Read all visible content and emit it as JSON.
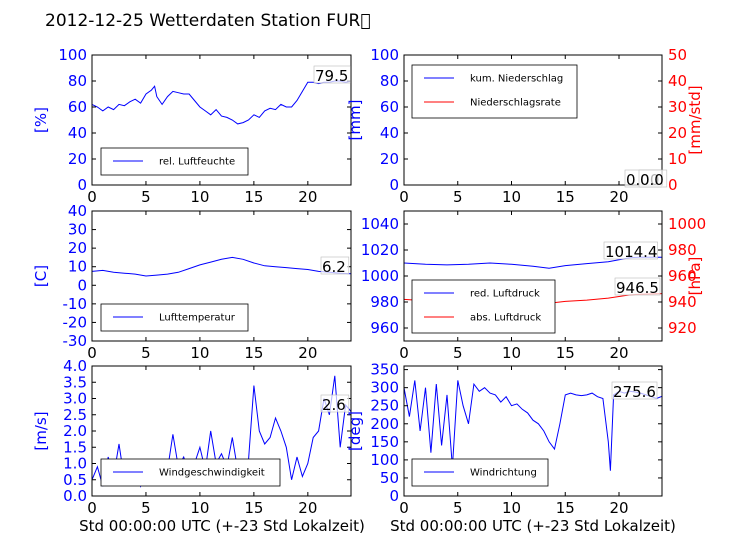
{
  "title": "2012-12-25 Wetterdaten Station FUR\u0000",
  "xlabel": "Std 00:00:00 UTC (+-23 Std Lokalzeit)",
  "colors": {
    "blue": "#0000ff",
    "red": "#ff0000",
    "black": "#000000"
  },
  "chart_data": [
    {
      "id": "humidity",
      "type": "line",
      "xlim": [
        0,
        24
      ],
      "ylim": [
        0,
        100
      ],
      "xticks": [
        0,
        5,
        10,
        15,
        20
      ],
      "yticks": [
        0,
        20,
        40,
        60,
        80,
        100
      ],
      "ylabel": "[%]",
      "legend": [
        "rel. Luftfeuchte"
      ],
      "legend_position": "lower-left",
      "annotation": "79.5",
      "series": [
        {
          "name": "rel. Luftfeuchte",
          "color": "#0000ff",
          "x": [
            0,
            0.5,
            1,
            1.5,
            2,
            2.5,
            3,
            3.5,
            4,
            4.5,
            5,
            5.5,
            5.8,
            6,
            6.5,
            7,
            7.5,
            8,
            8.5,
            9,
            9.5,
            10,
            10.5,
            11,
            11.5,
            12,
            12.5,
            13,
            13.5,
            14,
            14.5,
            15,
            15.5,
            16,
            16.5,
            17,
            17.5,
            18,
            18.5,
            19,
            19.5,
            20,
            20.5,
            21,
            21.5,
            22,
            22.5,
            23,
            23.5,
            24
          ],
          "y": [
            62,
            60,
            57,
            60,
            58,
            62,
            61,
            64,
            66,
            63,
            70,
            73,
            76,
            68,
            62,
            68,
            72,
            71,
            70,
            70,
            65,
            60,
            57,
            54,
            58,
            53,
            52,
            50,
            47,
            48,
            50,
            54,
            52,
            57,
            59,
            58,
            62,
            60,
            60,
            65,
            72,
            79,
            79,
            78,
            79,
            79,
            80,
            80,
            79,
            80
          ]
        }
      ]
    },
    {
      "id": "precipitation",
      "type": "line",
      "xlim": [
        0,
        24
      ],
      "ylim": [
        0,
        100
      ],
      "y2lim": [
        0,
        50
      ],
      "xticks": [
        0,
        5,
        10,
        15,
        20
      ],
      "yticks": [
        0,
        20,
        40,
        60,
        80,
        100
      ],
      "y2ticks": [
        0,
        10,
        20,
        30,
        40,
        50
      ],
      "ylabel": "[mm]",
      "y2label": "[mm/std]",
      "legend": [
        "kum. Niederschlag",
        "Niederschlagsrate"
      ],
      "legend_position": "upper-left",
      "annotation": "0.00",
      "annotation2": "0.0",
      "series": [
        {
          "name": "kum. Niederschlag",
          "color": "#0000ff",
          "axis": "left",
          "x": [
            0,
            24
          ],
          "y": [
            0,
            0
          ]
        },
        {
          "name": "Niederschlagsrate",
          "color": "#ff0000",
          "axis": "right",
          "x": [
            0,
            24
          ],
          "y": [
            0,
            0
          ]
        }
      ]
    },
    {
      "id": "temperature",
      "type": "line",
      "xlim": [
        0,
        24
      ],
      "ylim": [
        -30,
        40
      ],
      "xticks": [
        0,
        5,
        10,
        15,
        20
      ],
      "yticks": [
        -30,
        -20,
        -10,
        0,
        10,
        20,
        30,
        40
      ],
      "ylabel": "[C]",
      "legend": [
        "Lufttemperatur"
      ],
      "legend_position": "lower-left",
      "annotation": "6.2",
      "series": [
        {
          "name": "Lufttemperatur",
          "color": "#0000ff",
          "x": [
            0,
            1,
            2,
            3,
            4,
            5,
            6,
            7,
            8,
            9,
            10,
            11,
            12,
            13,
            14,
            15,
            16,
            17,
            18,
            19,
            20,
            21,
            22,
            23,
            24
          ],
          "y": [
            7.5,
            8,
            7,
            6.5,
            6,
            5,
            5.5,
            6,
            7,
            9,
            11,
            12.5,
            14,
            15,
            14,
            12,
            10.5,
            10,
            9.5,
            9,
            8.5,
            7.5,
            7,
            6.5,
            6.2
          ]
        }
      ]
    },
    {
      "id": "pressure",
      "type": "line",
      "xlim": [
        0,
        24
      ],
      "ylim": [
        950,
        1050
      ],
      "y2lim": [
        910,
        1010
      ],
      "xticks": [
        0,
        5,
        10,
        15,
        20
      ],
      "yticks": [
        960,
        980,
        1000,
        1020,
        1040
      ],
      "y2ticks": [
        920,
        940,
        960,
        980,
        1000
      ],
      "y2label": "[hPa]",
      "legend": [
        "red. Luftdruck",
        "abs. Luftdruck"
      ],
      "legend_position": "lower-left",
      "annotation": "1014.4",
      "annotation2": "946.5",
      "series": [
        {
          "name": "red. Luftdruck",
          "color": "#0000ff",
          "axis": "left",
          "x": [
            0,
            2,
            4,
            6,
            8,
            10,
            12,
            13.5,
            15,
            17,
            19,
            21,
            22,
            24
          ],
          "y": [
            1010,
            1009,
            1008.5,
            1009,
            1010,
            1009,
            1007.5,
            1006,
            1008,
            1009.5,
            1011,
            1014,
            1014.5,
            1014.4
          ]
        },
        {
          "name": "abs. Luftdruck",
          "color": "#ff0000",
          "axis": "right",
          "x": [
            0,
            2,
            4,
            6,
            8,
            10,
            12,
            13.5,
            15,
            17,
            19,
            21,
            22,
            24
          ],
          "y": [
            942,
            941,
            940.5,
            941,
            942,
            941,
            940,
            939,
            940.5,
            941.5,
            943,
            945.5,
            946,
            946.5
          ]
        }
      ]
    },
    {
      "id": "windspeed",
      "type": "line",
      "xlim": [
        0,
        24
      ],
      "ylim": [
        0,
        4
      ],
      "xticks": [
        0,
        5,
        10,
        15,
        20
      ],
      "yticks": [
        0,
        0.5,
        1.0,
        1.5,
        2.0,
        2.5,
        3.0,
        3.5,
        4.0
      ],
      "ylabels": [
        "0.0",
        "0.5",
        "1.0",
        "1.5",
        "2.0",
        "2.5",
        "3.0",
        "3.5",
        "4.0"
      ],
      "ylabel": "[m/s]",
      "legend": [
        "Windgeschwindigkeit"
      ],
      "legend_position": "lower-left",
      "annotation": "2.6",
      "series": [
        {
          "name": "Windgeschwindigkeit",
          "color": "#0000ff",
          "x": [
            0,
            0.5,
            1,
            1.5,
            2,
            2.5,
            3,
            3.5,
            4,
            4.5,
            5,
            5.5,
            6,
            6.5,
            7,
            7.5,
            8,
            8.5,
            9,
            9.5,
            10,
            10.5,
            11,
            11.5,
            12,
            12.5,
            13,
            13.5,
            14,
            14.5,
            15,
            15.5,
            16,
            16.5,
            17,
            17.5,
            18,
            18.5,
            19,
            19.5,
            20,
            20.5,
            21,
            21.5,
            22,
            22.5,
            23,
            23.5,
            24
          ],
          "y": [
            0.5,
            0.9,
            0.3,
            1.2,
            0.6,
            1.6,
            0.5,
            1.0,
            0.7,
            0.3,
            1.0,
            0.6,
            0.9,
            0.5,
            0.8,
            1.9,
            0.9,
            1.2,
            0.7,
            1.0,
            1.5,
            0.8,
            2.0,
            1.0,
            1.3,
            0.9,
            1.8,
            0.8,
            1.0,
            1.1,
            3.4,
            2.0,
            1.6,
            1.8,
            2.4,
            2.0,
            1.5,
            0.5,
            1.2,
            0.6,
            1.0,
            1.8,
            2.0,
            3.0,
            2.5,
            3.7,
            1.5,
            2.8,
            2.6
          ]
        }
      ]
    },
    {
      "id": "winddirection",
      "type": "line",
      "xlim": [
        0,
        24
      ],
      "ylim": [
        0,
        360
      ],
      "xticks": [
        0,
        5,
        10,
        15,
        20
      ],
      "yticks": [
        0,
        50,
        100,
        150,
        200,
        250,
        300,
        350
      ],
      "ylabel": "[deg]",
      "legend": [
        "Windrichtung"
      ],
      "legend_position": "lower-left",
      "annotation": "275.6",
      "series": [
        {
          "name": "Windrichtung",
          "color": "#0000ff",
          "x": [
            0,
            0.5,
            1,
            1.5,
            2,
            2.5,
            3,
            3.5,
            4,
            4.5,
            5,
            5.5,
            6,
            6.5,
            7,
            7.5,
            8,
            8.5,
            9,
            9.5,
            10,
            10.5,
            11,
            11.5,
            12,
            12.5,
            13,
            13.5,
            14,
            14.5,
            15,
            15.5,
            16,
            16.5,
            17,
            17.5,
            18,
            18.5,
            19,
            19.2,
            19.5,
            20,
            20.5,
            21,
            21.5,
            22,
            22.5,
            23,
            23.5,
            24
          ],
          "y": [
            300,
            220,
            320,
            180,
            300,
            120,
            310,
            140,
            280,
            80,
            320,
            250,
            200,
            310,
            290,
            300,
            285,
            280,
            260,
            275,
            250,
            255,
            240,
            230,
            210,
            200,
            180,
            150,
            130,
            200,
            280,
            285,
            280,
            278,
            280,
            285,
            275,
            270,
            150,
            70,
            280,
            290,
            285,
            290,
            288,
            285,
            280,
            275,
            270,
            276
          ]
        }
      ]
    }
  ]
}
